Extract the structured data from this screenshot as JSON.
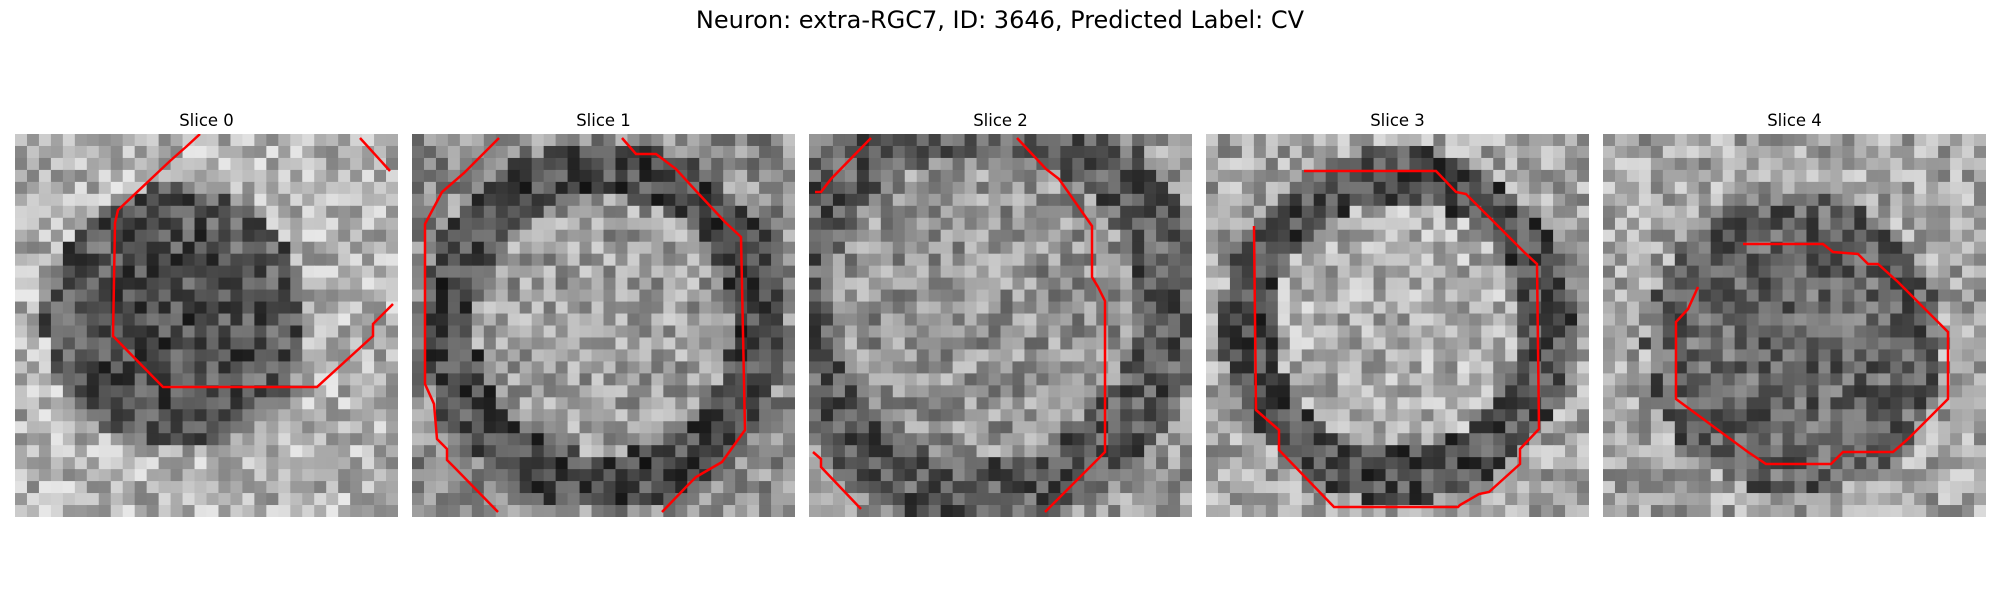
{
  "figure": {
    "title": "Neuron: extra-RGC7, ID: 3646, Predicted Label: CV"
  },
  "panels": [
    {
      "title": "Slice 0"
    },
    {
      "title": "Slice 1"
    },
    {
      "title": "Slice 2"
    },
    {
      "title": "Slice 3"
    },
    {
      "title": "Slice 4"
    }
  ],
  "colors": {
    "contour": "#ff0000"
  }
}
